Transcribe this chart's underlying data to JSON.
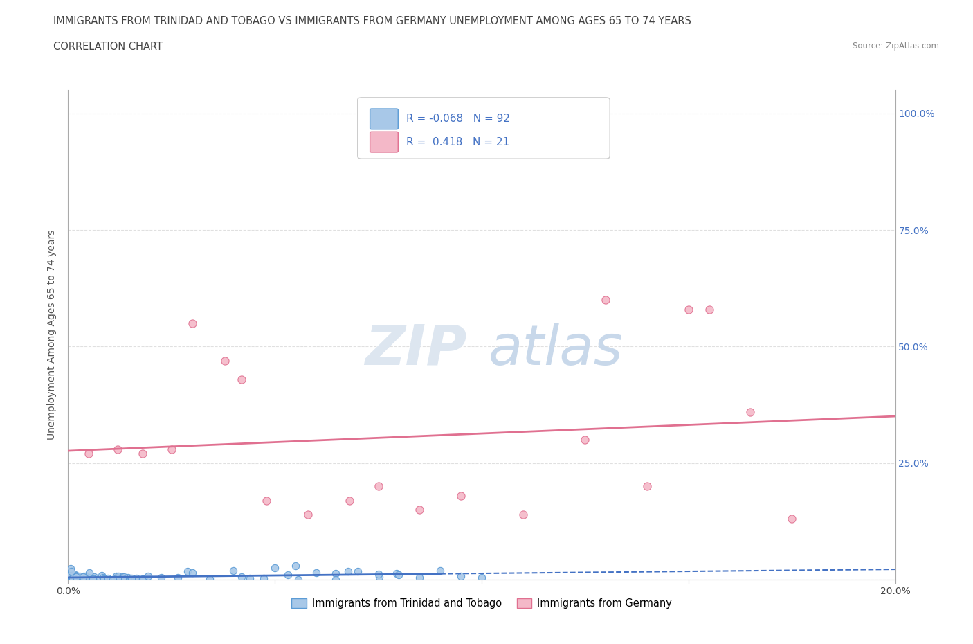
{
  "title_line1": "IMMIGRANTS FROM TRINIDAD AND TOBAGO VS IMMIGRANTS FROM GERMANY UNEMPLOYMENT AMONG AGES 65 TO 74 YEARS",
  "title_line2": "CORRELATION CHART",
  "source_text": "Source: ZipAtlas.com",
  "ylabel": "Unemployment Among Ages 65 to 74 years",
  "legend_label1": "Immigrants from Trinidad and Tobago",
  "legend_label2": "Immigrants from Germany",
  "r1": -0.068,
  "n1": 92,
  "r2": 0.418,
  "n2": 21,
  "color1_face": "#a8c8e8",
  "color1_edge": "#5b9bd5",
  "color2_face": "#f4b8c8",
  "color2_edge": "#e07090",
  "line_color1": "#4472c4",
  "line_color2": "#e07090",
  "right_axis_color": "#4472c4",
  "watermark_zip_color": "#e0e8f0",
  "watermark_atlas_color": "#c8d8e8",
  "xmin": 0.0,
  "xmax": 0.2,
  "ymin": 0.0,
  "ymax": 1.05,
  "grid_color": "#dddddd",
  "spine_color": "#aaaaaa"
}
